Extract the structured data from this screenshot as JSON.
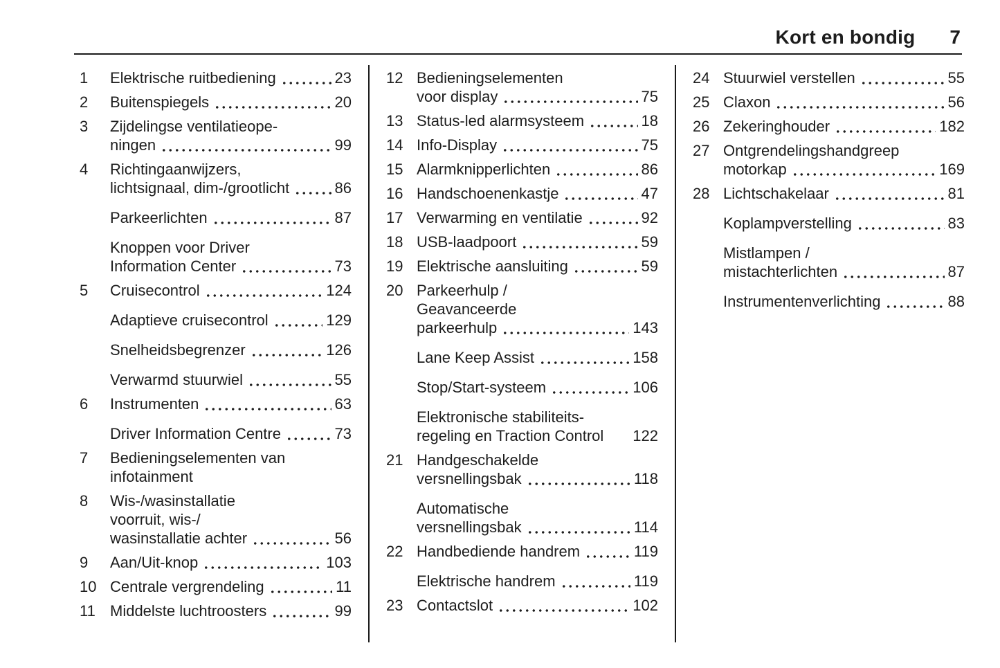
{
  "header": {
    "title": "Kort en bondig",
    "page_number": "7"
  },
  "colors": {
    "text": "#1d1d1d",
    "rule": "#1b1b1b",
    "background": "#ffffff"
  },
  "columns": [
    {
      "entries": [
        {
          "num": "1",
          "lines": [
            "Elektrische ruitbediening"
          ],
          "page": "23"
        },
        {
          "num": "2",
          "lines": [
            "Buitenspiegels"
          ],
          "page": "20"
        },
        {
          "num": "3",
          "lines": [
            "Zijdelingse ventilatieope-",
            "ningen"
          ],
          "page": "99"
        },
        {
          "num": "4",
          "lines": [
            "Richtingaanwijzers,",
            "lichtsignaal, dim-/grootlicht"
          ],
          "page": "86"
        },
        {
          "num": "",
          "lines": [
            "Parkeerlichten"
          ],
          "page": "87"
        },
        {
          "num": "",
          "lines": [
            "Knoppen voor Driver",
            "Information Center"
          ],
          "page": "73"
        },
        {
          "num": "5",
          "lines": [
            "Cruisecontrol"
          ],
          "page": "124"
        },
        {
          "num": "",
          "lines": [
            "Adaptieve cruisecontrol"
          ],
          "page": "129"
        },
        {
          "num": "",
          "lines": [
            "Snelheidsbegrenzer"
          ],
          "page": "126"
        },
        {
          "num": "",
          "lines": [
            "Verwarmd stuurwiel"
          ],
          "page": "55"
        },
        {
          "num": "6",
          "lines": [
            "Instrumenten"
          ],
          "page": "63"
        },
        {
          "num": "",
          "lines": [
            "Driver Information Centre"
          ],
          "page": "73"
        },
        {
          "num": "7",
          "lines": [
            "Bedieningselementen van",
            "infotainment"
          ],
          "page": ""
        },
        {
          "num": "8",
          "lines": [
            "Wis-/wasinstallatie",
            "voorruit, wis-/",
            "wasinstallatie achter"
          ],
          "page": "56"
        },
        {
          "num": "9",
          "lines": [
            "Aan/Uit-knop"
          ],
          "page": "103"
        },
        {
          "num": "10",
          "lines": [
            "Centrale vergrendeling"
          ],
          "page": "11"
        },
        {
          "num": "11",
          "lines": [
            "Middelste luchtroosters"
          ],
          "page": "99"
        }
      ]
    },
    {
      "entries": [
        {
          "num": "12",
          "lines": [
            "Bedieningselementen",
            "voor display"
          ],
          "page": "75"
        },
        {
          "num": "13",
          "lines": [
            "Status-led alarmsysteem"
          ],
          "page": "18"
        },
        {
          "num": "14",
          "lines": [
            "Info-Display"
          ],
          "page": "75"
        },
        {
          "num": "15",
          "lines": [
            "Alarmknipperlichten"
          ],
          "page": "86"
        },
        {
          "num": "16",
          "lines": [
            "Handschoenenkastje"
          ],
          "page": "47"
        },
        {
          "num": "17",
          "lines": [
            "Verwarming en ventilatie"
          ],
          "page": "92"
        },
        {
          "num": "18",
          "lines": [
            "USB-laadpoort"
          ],
          "page": "59"
        },
        {
          "num": "19",
          "lines": [
            "Elektrische aansluiting"
          ],
          "page": "59"
        },
        {
          "num": "20",
          "lines": [
            "Parkeerhulp /",
            "Geavanceerde",
            "parkeerhulp"
          ],
          "page": "143"
        },
        {
          "num": "",
          "lines": [
            "Lane Keep Assist"
          ],
          "page": "158"
        },
        {
          "num": "",
          "lines": [
            "Stop/Start-systeem"
          ],
          "page": "106"
        },
        {
          "num": "",
          "lines": [
            "Elektronische stabiliteits-",
            "regeling en Traction Control"
          ],
          "page": "122",
          "dots": false
        },
        {
          "num": "21",
          "lines": [
            "Handgeschakelde",
            "versnellingsbak"
          ],
          "page": "118"
        },
        {
          "num": "",
          "lines": [
            "Automatische",
            "versnellingsbak"
          ],
          "page": "114"
        },
        {
          "num": "22",
          "lines": [
            "Handbediende handrem"
          ],
          "page": "119"
        },
        {
          "num": "",
          "lines": [
            "Elektrische handrem"
          ],
          "page": "119"
        },
        {
          "num": "23",
          "lines": [
            "Contactslot"
          ],
          "page": "102"
        }
      ]
    },
    {
      "entries": [
        {
          "num": "24",
          "lines": [
            "Stuurwiel verstellen"
          ],
          "page": "55"
        },
        {
          "num": "25",
          "lines": [
            "Claxon"
          ],
          "page": "56"
        },
        {
          "num": "26",
          "lines": [
            "Zekeringhouder"
          ],
          "page": "182"
        },
        {
          "num": "27",
          "lines": [
            "Ontgrendelingshandgreep",
            "motorkap"
          ],
          "page": "169"
        },
        {
          "num": "28",
          "lines": [
            "Lichtschakelaar"
          ],
          "page": "81"
        },
        {
          "num": "",
          "lines": [
            "Koplampverstelling"
          ],
          "page": "83"
        },
        {
          "num": "",
          "lines": [
            "Mistlampen /",
            "mistachterlichten"
          ],
          "page": "87"
        },
        {
          "num": "",
          "lines": [
            "Instrumentenverlichting"
          ],
          "page": "88"
        }
      ]
    }
  ]
}
